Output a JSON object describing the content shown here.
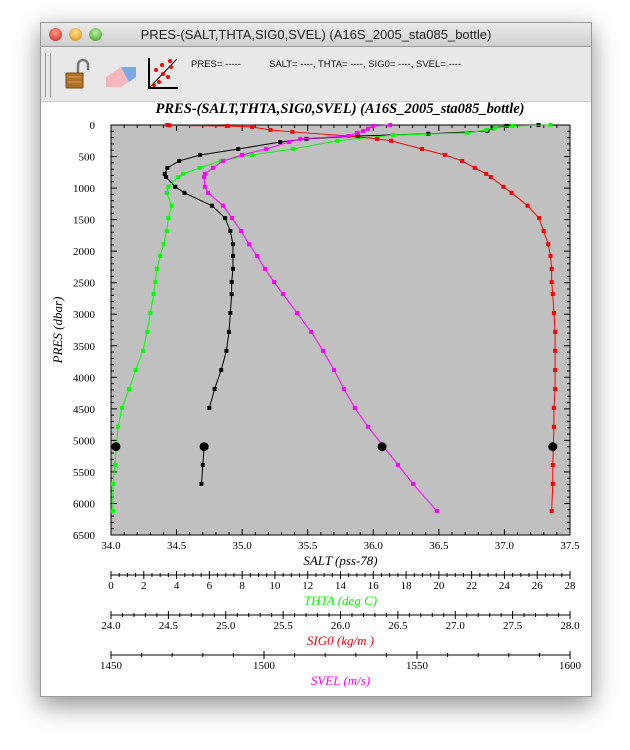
{
  "window": {
    "title": "PRES-(SALT,THTA,SIG0,SVEL) (A16S_2005_sta085_bottle)"
  },
  "toolbar": {
    "pres_readout": "PRES= -----",
    "values_readout": "SALT= ----, THTA= ----, SIG0= ----, SVEL= ----"
  },
  "icons": {
    "lock": "unlocked-padlock-icon",
    "eraser": "eraser-icon",
    "scatter": "scatter-plot-icon"
  },
  "chart_data": {
    "type": "line",
    "title": "PRES-(SALT,THTA,SIG0,SVEL) (A16S_2005_sta085_bottle)",
    "ylabel": "PRES (dbar)",
    "ylim": [
      0,
      6500
    ],
    "yticks": [
      0,
      500,
      1000,
      1500,
      2000,
      2500,
      3000,
      3500,
      4000,
      4500,
      5000,
      5500,
      6000,
      6500
    ],
    "y_minor_step": 100,
    "background": "#c0c0c0",
    "x_axes": [
      {
        "name": "SALT",
        "label": "SALT (pss-78)",
        "color": "#000000",
        "lim": [
          34.0,
          37.5
        ],
        "ticks": [
          "34.0",
          "34.5",
          "35.0",
          "35.5",
          "36.0",
          "36.5",
          "37.0",
          "37.5"
        ],
        "minor_step": 0.1
      },
      {
        "name": "THTA",
        "label": "THTA (deg C)",
        "color": "#00ff00",
        "lim": [
          0,
          28
        ],
        "ticks": [
          "0",
          "2",
          "4",
          "6",
          "8",
          "10",
          "12",
          "14",
          "16",
          "18",
          "20",
          "22",
          "24",
          "26",
          "28"
        ],
        "minor_step": 0.5
      },
      {
        "name": "SIG0",
        "label": "SIG0 (kg/m )",
        "color": "#ff0000",
        "lim": [
          24.0,
          28.0
        ],
        "ticks": [
          "24.0",
          "24.5",
          "25.0",
          "25.5",
          "26.0",
          "26.5",
          "27.0",
          "27.5",
          "28.0"
        ],
        "minor_step": 0.1
      },
      {
        "name": "SVEL",
        "label": "SVEL (m/s)",
        "color": "#ff00ff",
        "lim": [
          1450,
          1600
        ],
        "ticks": [
          "1450",
          "1500",
          "1550",
          "1600"
        ],
        "minor_step": 10
      }
    ],
    "series": [
      {
        "name": "SALT",
        "color": "#000000",
        "marker_pres": 5100,
        "marker_value": 34.71,
        "points": [
          [
            37.26,
            0
          ],
          [
            37.02,
            15
          ],
          [
            36.91,
            50
          ],
          [
            36.87,
            95
          ],
          [
            36.42,
            140
          ],
          [
            35.88,
            175
          ],
          [
            35.49,
            220
          ],
          [
            35.29,
            270
          ],
          [
            34.97,
            380
          ],
          [
            34.68,
            475
          ],
          [
            34.52,
            570
          ],
          [
            34.43,
            680
          ],
          [
            34.41,
            775
          ],
          [
            34.42,
            825
          ],
          [
            34.49,
            980
          ],
          [
            34.56,
            1075
          ],
          [
            34.77,
            1280
          ],
          [
            34.87,
            1475
          ],
          [
            34.91,
            1680
          ],
          [
            34.93,
            1890
          ],
          [
            34.93,
            2075
          ],
          [
            34.93,
            2280
          ],
          [
            34.92,
            2490
          ],
          [
            34.92,
            2680
          ],
          [
            34.91,
            2980
          ],
          [
            34.9,
            3280
          ],
          [
            34.88,
            3580
          ],
          [
            34.84,
            3885
          ],
          [
            34.79,
            4185
          ],
          [
            34.75,
            4485
          ],
          null,
          [
            34.71,
            5100
          ],
          [
            34.7,
            5390
          ],
          [
            34.69,
            5690
          ]
        ]
      },
      {
        "name": "THTA",
        "color": "#00ff00",
        "marker_pres": 5100,
        "marker_value": 0.3,
        "points": [
          [
            26.8,
            0
          ],
          [
            24.5,
            15
          ],
          [
            23.4,
            50
          ],
          [
            22.9,
            80
          ],
          [
            21.7,
            125
          ],
          [
            17.2,
            160
          ],
          [
            13.8,
            250
          ],
          [
            11.1,
            380
          ],
          [
            8.6,
            475
          ],
          [
            6.7,
            570
          ],
          [
            5.4,
            680
          ],
          [
            4.4,
            775
          ],
          [
            4.1,
            825
          ],
          [
            3.5,
            980
          ],
          [
            3.4,
            1075
          ],
          [
            3.7,
            1280
          ],
          [
            3.5,
            1475
          ],
          [
            3.4,
            1680
          ],
          [
            3.2,
            1890
          ],
          [
            3.0,
            2075
          ],
          [
            2.8,
            2280
          ],
          [
            2.7,
            2490
          ],
          [
            2.6,
            2680
          ],
          [
            2.4,
            2980
          ],
          [
            2.2,
            3280
          ],
          [
            1.95,
            3580
          ],
          [
            1.5,
            3885
          ],
          [
            1.1,
            4185
          ],
          [
            0.67,
            4485
          ],
          [
            0.43,
            4785
          ],
          [
            0.24,
            5390
          ],
          [
            0.12,
            5690
          ],
          [
            0.12,
            6120
          ]
        ]
      },
      {
        "name": "SIG0",
        "color": "#ff0000",
        "marker_pres": 5100,
        "marker_value": 27.85,
        "points": [
          [
            24.49,
            0
          ],
          [
            24.51,
            5
          ],
          [
            25.01,
            15
          ],
          [
            25.23,
            30
          ],
          [
            25.39,
            80
          ],
          [
            25.58,
            110
          ],
          [
            26.07,
            175
          ],
          [
            26.32,
            220
          ],
          [
            26.44,
            250
          ],
          [
            26.71,
            380
          ],
          [
            26.91,
            475
          ],
          [
            27.06,
            570
          ],
          [
            27.17,
            680
          ],
          [
            27.27,
            775
          ],
          [
            27.31,
            825
          ],
          [
            27.42,
            980
          ],
          [
            27.49,
            1075
          ],
          [
            27.63,
            1280
          ],
          [
            27.73,
            1475
          ],
          [
            27.77,
            1680
          ],
          [
            27.81,
            1890
          ],
          [
            27.83,
            2075
          ],
          [
            27.84,
            2280
          ],
          [
            27.84,
            2490
          ],
          [
            27.85,
            2680
          ],
          [
            27.86,
            2980
          ],
          [
            27.87,
            3280
          ],
          [
            27.87,
            3580
          ],
          [
            27.87,
            3885
          ],
          [
            27.87,
            4185
          ],
          [
            27.86,
            4485
          ],
          [
            27.86,
            4785
          ],
          [
            27.85,
            5390
          ],
          [
            27.85,
            5690
          ],
          [
            27.84,
            6120
          ]
        ]
      },
      {
        "name": "SVEL",
        "color": "#ff00ff",
        "marker_pres": 5100,
        "marker_value": 1538.6,
        "points": [
          [
            1541.2,
            0
          ],
          [
            1535.6,
            15
          ],
          [
            1534,
            60
          ],
          [
            1532.4,
            95
          ],
          [
            1530.4,
            125
          ],
          [
            1527.5,
            175
          ],
          [
            1511.8,
            220
          ],
          [
            1508.2,
            270
          ],
          [
            1500.7,
            380
          ],
          [
            1492.8,
            475
          ],
          [
            1486.6,
            570
          ],
          [
            1483.3,
            680
          ],
          [
            1480.7,
            775
          ],
          [
            1480.4,
            825
          ],
          [
            1480.7,
            980
          ],
          [
            1481.7,
            1075
          ],
          [
            1486.6,
            1280
          ],
          [
            1489.5,
            1475
          ],
          [
            1492.5,
            1680
          ],
          [
            1495.1,
            1890
          ],
          [
            1497.7,
            2075
          ],
          [
            1500.3,
            2280
          ],
          [
            1503.3,
            2490
          ],
          [
            1506.2,
            2680
          ],
          [
            1510.8,
            2980
          ],
          [
            1515.4,
            3280
          ],
          [
            1519.3,
            3580
          ],
          [
            1522.9,
            3885
          ],
          [
            1526.1,
            4185
          ],
          [
            1529.7,
            4485
          ],
          [
            1534,
            4785
          ],
          [
            1543.8,
            5390
          ],
          [
            1548.7,
            5690
          ],
          [
            1556.5,
            6120
          ]
        ]
      }
    ]
  }
}
